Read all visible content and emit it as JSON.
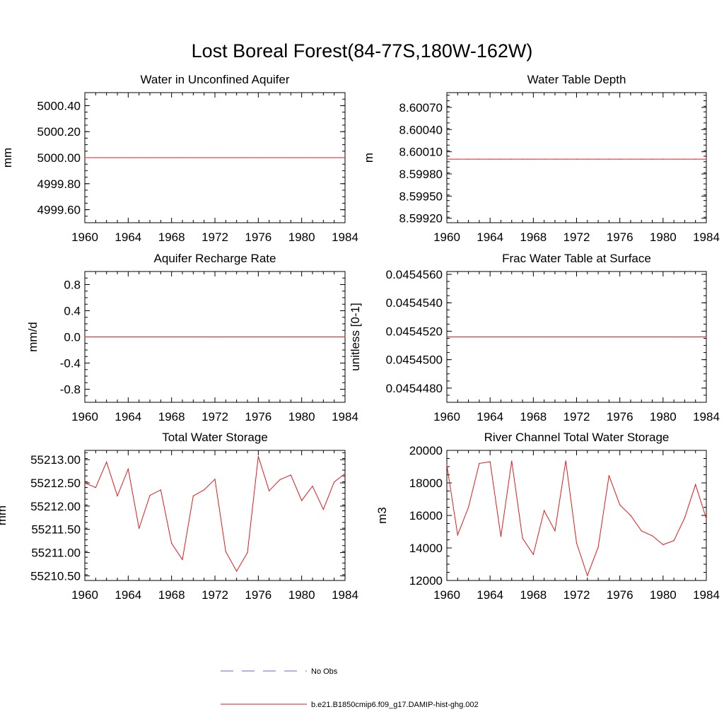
{
  "figure": {
    "title": "Lost Boreal Forest(84-77S,180W-162W)"
  },
  "legend": [
    {
      "label": "No Obs",
      "color": "#5b6fb5",
      "dash": "dashed"
    },
    {
      "label": "b.e21.B1850cmip6.f09_g17.DAMIP-hist-ghg.002",
      "color": "#e31a1c",
      "dash": "solid"
    }
  ],
  "chart_data": [
    {
      "type": "line",
      "title": "Water in Unconfined Aquifer",
      "ylabel": "mm",
      "xlim": [
        1960,
        1984
      ],
      "ylim": [
        4999.5,
        5000.5
      ],
      "x_ticks": [
        "1960",
        "1964",
        "1968",
        "1972",
        "1976",
        "1980",
        "1984"
      ],
      "y_ticks": [
        {
          "value": 5000.4,
          "label": "5000.40"
        },
        {
          "value": 5000.2,
          "label": "5000.20"
        },
        {
          "value": 5000.0,
          "label": "5000.00"
        },
        {
          "value": 4999.8,
          "label": "4999.80"
        },
        {
          "value": 4999.6,
          "label": "4999.60"
        }
      ],
      "series": [
        {
          "name": "b.e21.B1850cmip6.f09_g17.DAMIP-hist-ghg.002",
          "color": "#e31a1c",
          "x": [
            1960,
            1961,
            1962,
            1963,
            1964,
            1965,
            1966,
            1967,
            1968,
            1969,
            1970,
            1971,
            1972,
            1973,
            1974,
            1975,
            1976,
            1977,
            1978,
            1979,
            1980,
            1981,
            1982,
            1983,
            1984
          ],
          "y": [
            5000,
            5000,
            5000,
            5000,
            5000,
            5000,
            5000,
            5000,
            5000,
            5000,
            5000,
            5000,
            5000,
            5000,
            5000,
            5000,
            5000,
            5000,
            5000,
            5000,
            5000,
            5000,
            5000,
            5000,
            5000
          ]
        }
      ]
    },
    {
      "type": "line",
      "title": "Water Table Depth",
      "ylabel": "m",
      "xlim": [
        1960,
        1984
      ],
      "ylim": [
        8.59914,
        8.6009
      ],
      "x_ticks": [
        "1960",
        "1964",
        "1968",
        "1972",
        "1976",
        "1980",
        "1984"
      ],
      "y_ticks": [
        {
          "value": 8.6007,
          "label": "8.60070"
        },
        {
          "value": 8.6004,
          "label": "8.60040"
        },
        {
          "value": 8.6001,
          "label": "8.60010"
        },
        {
          "value": 8.5998,
          "label": "8.59980"
        },
        {
          "value": 8.5995,
          "label": "8.59950"
        },
        {
          "value": 8.5992,
          "label": "8.59920"
        }
      ],
      "series": [
        {
          "name": "b.e21.B1850cmip6.f09_g17.DAMIP-hist-ghg.002",
          "color": "#e31a1c",
          "x": [
            1960,
            1961,
            1962,
            1963,
            1964,
            1965,
            1966,
            1967,
            1968,
            1969,
            1970,
            1971,
            1972,
            1973,
            1974,
            1975,
            1976,
            1977,
            1978,
            1979,
            1980,
            1981,
            1982,
            1983,
            1984
          ],
          "y": [
            8.6,
            8.6,
            8.6,
            8.6,
            8.6,
            8.6,
            8.6,
            8.6,
            8.6,
            8.6,
            8.6,
            8.6,
            8.6,
            8.6,
            8.6,
            8.6,
            8.6,
            8.6,
            8.6,
            8.6,
            8.6,
            8.6,
            8.6,
            8.6,
            8.6
          ]
        }
      ]
    },
    {
      "type": "line",
      "title": "Aquifer Recharge Rate",
      "ylabel": "mm/d",
      "xlim": [
        1960,
        1984
      ],
      "ylim": [
        -1.0,
        1.0
      ],
      "x_ticks": [
        "1960",
        "1964",
        "1968",
        "1972",
        "1976",
        "1980",
        "1984"
      ],
      "y_ticks": [
        {
          "value": 0.8,
          "label": "0.8"
        },
        {
          "value": 0.4,
          "label": "0.4"
        },
        {
          "value": 0.0,
          "label": "0.0"
        },
        {
          "value": -0.4,
          "label": "-0.4"
        },
        {
          "value": -0.8,
          "label": "-0.8"
        }
      ],
      "series": [
        {
          "name": "b.e21.B1850cmip6.f09_g17.DAMIP-hist-ghg.002",
          "color": "#e31a1c",
          "x": [
            1960,
            1961,
            1962,
            1963,
            1964,
            1965,
            1966,
            1967,
            1968,
            1969,
            1970,
            1971,
            1972,
            1973,
            1974,
            1975,
            1976,
            1977,
            1978,
            1979,
            1980,
            1981,
            1982,
            1983,
            1984
          ],
          "y": [
            0,
            0,
            0,
            0,
            0,
            0,
            0,
            0,
            0,
            0,
            0,
            0,
            0,
            0,
            0,
            0,
            0,
            0,
            0,
            0,
            0,
            0,
            0,
            0,
            0
          ]
        }
      ]
    },
    {
      "type": "line",
      "title": "Frac Water Table at Surface",
      "ylabel": "unitless [0-1]",
      "xlim": [
        1960,
        1984
      ],
      "ylim": [
        0.045447,
        0.0454562
      ],
      "x_ticks": [
        "1960",
        "1964",
        "1968",
        "1972",
        "1976",
        "1980",
        "1984"
      ],
      "y_ticks": [
        {
          "value": 0.045456,
          "label": "0.0454560"
        },
        {
          "value": 0.045454,
          "label": "0.0454540"
        },
        {
          "value": 0.045452,
          "label": "0.0454520"
        },
        {
          "value": 0.04545,
          "label": "0.0454500"
        },
        {
          "value": 0.045448,
          "label": "0.0454480"
        }
      ],
      "series": [
        {
          "name": "b.e21.B1850cmip6.f09_g17.DAMIP-hist-ghg.002",
          "color": "#e31a1c",
          "x": [
            1960,
            1961,
            1962,
            1963,
            1964,
            1965,
            1966,
            1967,
            1968,
            1969,
            1970,
            1971,
            1972,
            1973,
            1974,
            1975,
            1976,
            1977,
            1978,
            1979,
            1980,
            1981,
            1982,
            1983,
            1984
          ],
          "y": [
            0.0454516,
            0.0454516,
            0.0454516,
            0.0454516,
            0.0454516,
            0.0454516,
            0.0454516,
            0.0454516,
            0.0454516,
            0.0454516,
            0.0454516,
            0.0454516,
            0.0454516,
            0.0454516,
            0.0454516,
            0.0454516,
            0.0454516,
            0.0454516,
            0.0454516,
            0.0454516,
            0.0454516,
            0.0454516,
            0.0454516,
            0.0454516,
            0.0454516
          ]
        }
      ]
    },
    {
      "type": "line",
      "title": "Total Water Storage",
      "ylabel": "mm",
      "xlim": [
        1960,
        1984
      ],
      "ylim": [
        55210.4,
        55213.2
      ],
      "x_ticks": [
        "1960",
        "1964",
        "1968",
        "1972",
        "1976",
        "1980",
        "1984"
      ],
      "y_ticks": [
        {
          "value": 55213.0,
          "label": "55213.00"
        },
        {
          "value": 55212.5,
          "label": "55212.50"
        },
        {
          "value": 55212.0,
          "label": "55212.00"
        },
        {
          "value": 55211.5,
          "label": "55211.50"
        },
        {
          "value": 55211.0,
          "label": "55211.00"
        },
        {
          "value": 55210.5,
          "label": "55210.50"
        }
      ],
      "series": [
        {
          "name": "b.e21.B1850cmip6.f09_g17.DAMIP-hist-ghg.002",
          "color": "#e31a1c",
          "x": [
            1960,
            1961,
            1962,
            1963,
            1964,
            1965,
            1966,
            1967,
            1968,
            1969,
            1970,
            1971,
            1972,
            1973,
            1974,
            1975,
            1976,
            1977,
            1978,
            1979,
            1980,
            1981,
            1982,
            1983,
            1984
          ],
          "y": [
            55212.5,
            55212.4,
            55212.95,
            55212.22,
            55212.8,
            55211.52,
            55212.23,
            55212.35,
            55211.2,
            55210.85,
            55212.22,
            55212.35,
            55212.58,
            55211.02,
            55210.6,
            55211.0,
            55213.07,
            55212.33,
            55212.57,
            55212.67,
            55212.12,
            55212.43,
            55211.93,
            55212.52,
            55212.7
          ]
        }
      ]
    },
    {
      "type": "line",
      "title": "River Channel Total Water Storage",
      "ylabel": "m3",
      "xlim": [
        1960,
        1984
      ],
      "ylim": [
        12000,
        20000
      ],
      "x_ticks": [
        "1960",
        "1964",
        "1968",
        "1972",
        "1976",
        "1980",
        "1984"
      ],
      "y_ticks": [
        {
          "value": 20000,
          "label": "20000"
        },
        {
          "value": 18000,
          "label": "18000"
        },
        {
          "value": 16000,
          "label": "16000"
        },
        {
          "value": 14000,
          "label": "14000"
        },
        {
          "value": 12000,
          "label": "12000"
        }
      ],
      "series": [
        {
          "name": "b.e21.B1850cmip6.f09_g17.DAMIP-hist-ghg.002",
          "color": "#e31a1c",
          "x": [
            1960,
            1961,
            1962,
            1963,
            1964,
            1965,
            1966,
            1967,
            1968,
            1969,
            1970,
            1971,
            1972,
            1973,
            1974,
            1975,
            1976,
            1977,
            1978,
            1979,
            1980,
            1981,
            1982,
            1983,
            1984
          ],
          "y": [
            19100,
            14800,
            16500,
            19200,
            19300,
            14700,
            19350,
            14600,
            13600,
            16300,
            15050,
            19350,
            14300,
            12300,
            14050,
            18450,
            16650,
            16000,
            15050,
            14750,
            14200,
            14450,
            15850,
            17900,
            15800
          ]
        }
      ]
    }
  ]
}
